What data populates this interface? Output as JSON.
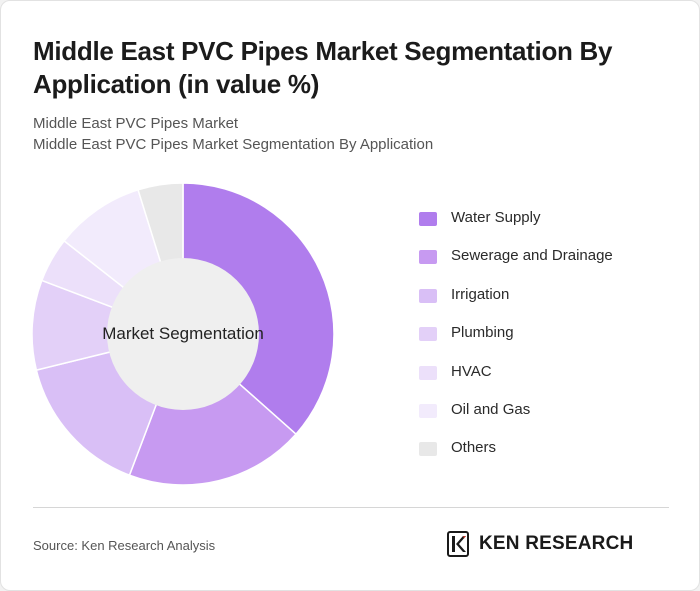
{
  "title": "Middle East PVC Pipes Market Segmentation By Application (in value %)",
  "subtitle_1": "Middle East PVC Pipes Market",
  "subtitle_2": "Middle East PVC Pipes Market Segmentation By Application",
  "source": "Source: Ken Research Analysis",
  "logo": {
    "text": "KEN RESEARCH",
    "icon": "ken-research-logo-icon"
  },
  "chart_data": {
    "type": "pie",
    "center_label": "Market Segmentation",
    "categories": [
      "Water Supply",
      "Sewerage and Drainage",
      "Irrigation",
      "Plumbing",
      "HVAC",
      "Oil and Gas",
      "Others"
    ],
    "values": [
      38,
      20,
      16,
      10,
      5,
      10,
      5
    ],
    "colors": [
      "#b07ded",
      "#c79af1",
      "#d9bff6",
      "#e3d0f8",
      "#ece0fa",
      "#f2ebfc",
      "#e8e8e8"
    ],
    "legend_position": "right"
  }
}
